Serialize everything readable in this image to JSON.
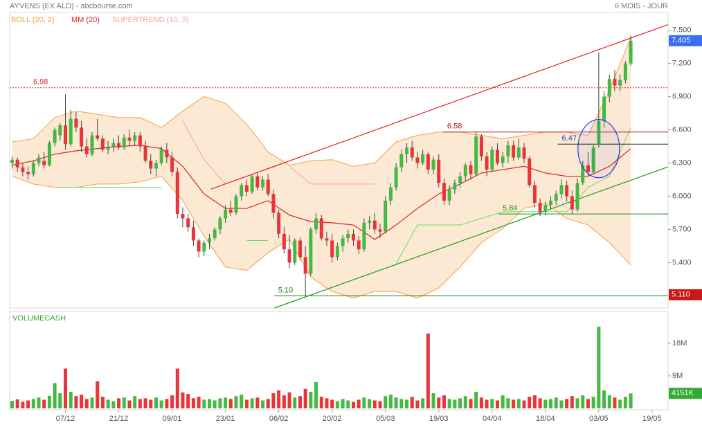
{
  "chart_data": {
    "type": "candlestick",
    "title": "AYVENS (EX ALD) - abcbourse.com",
    "period": "6 MOIS - JOUR",
    "xlim": [
      -0.45,
      123
    ],
    "ylim": [
      4.99,
      7.66
    ],
    "yticks": [
      {
        "value": 7.5,
        "label": "7.500"
      },
      {
        "value": 7.2,
        "label": "7.200"
      },
      {
        "value": 6.9,
        "label": "6.900"
      },
      {
        "value": 6.6,
        "label": "6.600"
      },
      {
        "value": 6.3,
        "label": "6.300"
      },
      {
        "value": 6.0,
        "label": "6.000"
      },
      {
        "value": 5.7,
        "label": "5.700"
      },
      {
        "value": 5.4,
        "label": "5.400"
      }
    ],
    "xticks": [
      {
        "value": 10,
        "label": "07/12"
      },
      {
        "value": 20,
        "label": "21/12"
      },
      {
        "value": 30,
        "label": "09/01"
      },
      {
        "value": 40,
        "label": "23/01"
      },
      {
        "value": 50,
        "label": "06/02"
      },
      {
        "value": 60,
        "label": "20/02"
      },
      {
        "value": 70,
        "label": "05/03"
      },
      {
        "value": 80,
        "label": "19/03"
      },
      {
        "value": 90,
        "label": "04/04"
      },
      {
        "value": 100,
        "label": "18/04"
      },
      {
        "value": 110,
        "label": "03/05"
      },
      {
        "value": 120,
        "label": "19/05"
      }
    ],
    "up_color": "#44b944",
    "down_color": "#e8353a",
    "ohlc": [
      [
        6.3,
        6.36,
        6.25,
        6.33
      ],
      [
        6.33,
        6.35,
        6.22,
        6.26
      ],
      [
        6.26,
        6.3,
        6.18,
        6.22
      ],
      [
        6.22,
        6.27,
        6.15,
        6.2
      ],
      [
        6.2,
        6.32,
        6.18,
        6.3
      ],
      [
        6.3,
        6.38,
        6.27,
        6.35
      ],
      [
        6.32,
        6.4,
        6.25,
        6.28
      ],
      [
        6.28,
        6.5,
        6.27,
        6.48
      ],
      [
        6.48,
        6.62,
        6.45,
        6.6
      ],
      [
        6.55,
        6.66,
        6.5,
        6.64
      ],
      [
        6.64,
        6.92,
        6.42,
        6.47
      ],
      [
        6.47,
        6.78,
        6.45,
        6.7
      ],
      [
        6.7,
        6.76,
        6.58,
        6.62
      ],
      [
        6.62,
        6.68,
        6.4,
        6.45
      ],
      [
        6.45,
        6.52,
        6.35,
        6.38
      ],
      [
        6.38,
        6.58,
        6.36,
        6.55
      ],
      [
        6.55,
        6.7,
        6.5,
        6.52
      ],
      [
        6.52,
        6.55,
        6.4,
        6.42
      ],
      [
        6.42,
        6.5,
        6.38,
        6.45
      ],
      [
        6.45,
        6.52,
        6.4,
        6.48
      ],
      [
        6.48,
        6.55,
        6.42,
        6.44
      ],
      [
        6.44,
        6.56,
        6.42,
        6.53
      ],
      [
        6.53,
        6.6,
        6.45,
        6.5
      ],
      [
        6.5,
        6.58,
        6.46,
        6.55
      ],
      [
        6.55,
        6.58,
        6.4,
        6.45
      ],
      [
        6.45,
        6.5,
        6.3,
        6.32
      ],
      [
        6.32,
        6.38,
        6.2,
        6.25
      ],
      [
        6.25,
        6.33,
        6.18,
        6.3
      ],
      [
        6.3,
        6.45,
        6.28,
        6.42
      ],
      [
        6.42,
        6.48,
        6.3,
        6.35
      ],
      [
        6.35,
        6.4,
        6.18,
        6.22
      ],
      [
        6.22,
        6.26,
        5.8,
        5.84
      ],
      [
        5.84,
        5.9,
        5.72,
        5.8
      ],
      [
        5.8,
        5.84,
        5.68,
        5.72
      ],
      [
        5.72,
        5.78,
        5.55,
        5.6
      ],
      [
        5.6,
        5.62,
        5.45,
        5.5
      ],
      [
        5.5,
        5.6,
        5.46,
        5.58
      ],
      [
        5.58,
        5.66,
        5.52,
        5.62
      ],
      [
        5.62,
        5.72,
        5.6,
        5.7
      ],
      [
        5.7,
        5.82,
        5.66,
        5.8
      ],
      [
        5.8,
        5.92,
        5.76,
        5.88
      ],
      [
        5.88,
        5.96,
        5.82,
        5.85
      ],
      [
        5.85,
        6.02,
        5.83,
        6.0
      ],
      [
        6.0,
        6.12,
        5.96,
        6.1
      ],
      [
        6.1,
        6.15,
        6.0,
        6.04
      ],
      [
        6.04,
        6.2,
        6.02,
        6.18
      ],
      [
        6.18,
        6.22,
        6.05,
        6.08
      ],
      [
        6.08,
        6.18,
        6.05,
        6.15
      ],
      [
        6.15,
        6.2,
        6.0,
        6.02
      ],
      [
        6.02,
        6.06,
        5.8,
        5.85
      ],
      [
        5.85,
        5.88,
        5.62,
        5.66
      ],
      [
        5.66,
        5.72,
        5.48,
        5.52
      ],
      [
        5.52,
        5.65,
        5.35,
        5.4
      ],
      [
        5.4,
        5.62,
        5.38,
        5.6
      ],
      [
        5.6,
        5.63,
        5.42,
        5.45
      ],
      [
        5.45,
        5.55,
        5.1,
        5.3
      ],
      [
        5.3,
        5.72,
        5.28,
        5.7
      ],
      [
        5.7,
        5.85,
        5.66,
        5.8
      ],
      [
        5.8,
        5.83,
        5.6,
        5.62
      ],
      [
        5.62,
        5.68,
        5.55,
        5.6
      ],
      [
        5.6,
        5.66,
        5.4,
        5.45
      ],
      [
        5.45,
        5.58,
        5.42,
        5.55
      ],
      [
        5.55,
        5.65,
        5.5,
        5.62
      ],
      [
        5.62,
        5.7,
        5.58,
        5.66
      ],
      [
        5.66,
        5.7,
        5.55,
        5.6
      ],
      [
        5.6,
        5.64,
        5.48,
        5.52
      ],
      [
        5.52,
        5.8,
        5.5,
        5.76
      ],
      [
        5.76,
        5.82,
        5.7,
        5.78
      ],
      [
        5.78,
        5.85,
        5.66,
        5.7
      ],
      [
        5.7,
        5.75,
        5.62,
        5.68
      ],
      [
        5.68,
        6.0,
        5.66,
        5.96
      ],
      [
        5.96,
        6.12,
        5.92,
        6.08
      ],
      [
        6.08,
        6.3,
        6.05,
        6.26
      ],
      [
        6.26,
        6.42,
        6.22,
        6.38
      ],
      [
        6.38,
        6.48,
        6.3,
        6.44
      ],
      [
        6.44,
        6.5,
        6.32,
        6.35
      ],
      [
        6.35,
        6.4,
        6.25,
        6.3
      ],
      [
        6.3,
        6.42,
        6.28,
        6.38
      ],
      [
        6.38,
        6.4,
        6.2,
        6.24
      ],
      [
        6.24,
        6.36,
        6.2,
        6.33
      ],
      [
        6.33,
        6.38,
        6.08,
        6.12
      ],
      [
        6.12,
        6.16,
        5.92,
        5.96
      ],
      [
        5.96,
        6.1,
        5.92,
        6.06
      ],
      [
        6.06,
        6.15,
        6.02,
        6.12
      ],
      [
        6.12,
        6.22,
        6.08,
        6.18
      ],
      [
        6.18,
        6.3,
        6.14,
        6.28
      ],
      [
        6.28,
        6.32,
        6.15,
        6.2
      ],
      [
        6.2,
        6.58,
        6.18,
        6.54
      ],
      [
        6.54,
        6.56,
        6.32,
        6.36
      ],
      [
        6.36,
        6.4,
        6.18,
        6.24
      ],
      [
        6.24,
        6.45,
        6.22,
        6.42
      ],
      [
        6.42,
        6.48,
        6.28,
        6.3
      ],
      [
        6.3,
        6.4,
        6.26,
        6.36
      ],
      [
        6.36,
        6.5,
        6.3,
        6.46
      ],
      [
        6.46,
        6.5,
        6.32,
        6.35
      ],
      [
        6.35,
        6.52,
        6.33,
        6.44
      ],
      [
        6.44,
        6.48,
        6.3,
        6.34
      ],
      [
        6.34,
        6.36,
        6.08,
        6.1
      ],
      [
        6.1,
        6.14,
        5.9,
        5.94
      ],
      [
        5.94,
        5.98,
        5.82,
        5.86
      ],
      [
        5.86,
        5.95,
        5.83,
        5.92
      ],
      [
        5.92,
        6.0,
        5.88,
        5.96
      ],
      [
        5.96,
        6.05,
        5.92,
        6.02
      ],
      [
        6.02,
        6.15,
        5.98,
        6.1
      ],
      [
        6.1,
        6.14,
        5.95,
        6.0
      ],
      [
        6.0,
        6.05,
        5.84,
        5.88
      ],
      [
        5.88,
        6.16,
        5.86,
        6.12
      ],
      [
        6.12,
        6.32,
        6.1,
        6.28
      ],
      [
        6.28,
        6.4,
        6.18,
        6.22
      ],
      [
        6.22,
        6.46,
        6.2,
        6.44
      ],
      [
        6.46,
        7.3,
        6.44,
        6.68
      ],
      [
        6.68,
        6.95,
        6.62,
        6.9
      ],
      [
        6.9,
        7.1,
        6.85,
        7.06
      ],
      [
        7.06,
        7.14,
        6.95,
        7.0
      ],
      [
        7.0,
        7.1,
        6.95,
        7.05
      ],
      [
        7.05,
        7.22,
        7.02,
        7.2
      ],
      [
        7.2,
        7.45,
        7.18,
        7.405
      ]
    ],
    "boll": {
      "name": "BOLL (20, 2)",
      "color": "#f0a040",
      "fill": "#fbe3c8",
      "x": [
        0,
        4,
        8,
        12,
        16,
        20,
        24,
        28,
        32,
        36,
        40,
        44,
        48,
        52,
        56,
        60,
        64,
        68,
        72,
        76,
        80,
        84,
        88,
        92,
        96,
        100,
        104,
        108,
        112,
        116
      ],
      "upper": [
        6.49,
        6.52,
        6.71,
        6.77,
        6.74,
        6.71,
        6.71,
        6.62,
        6.77,
        6.9,
        6.84,
        6.65,
        6.4,
        6.28,
        6.32,
        6.33,
        6.27,
        6.3,
        6.49,
        6.55,
        6.58,
        6.58,
        6.55,
        6.52,
        6.55,
        6.58,
        6.58,
        6.55,
        6.96,
        7.43
      ],
      "lower": [
        6.18,
        6.11,
        6.08,
        6.08,
        6.11,
        6.11,
        6.13,
        6.18,
        5.96,
        5.64,
        5.36,
        5.33,
        5.49,
        5.61,
        5.27,
        5.14,
        5.08,
        5.14,
        5.14,
        5.08,
        5.17,
        5.36,
        5.58,
        5.71,
        5.89,
        5.93,
        5.8,
        5.74,
        5.58,
        5.38
      ]
    },
    "mm": {
      "name": "MM (20)",
      "color": "#e02020",
      "x": [
        0,
        4,
        8,
        12,
        16,
        20,
        24,
        28,
        32,
        36,
        40,
        44,
        48,
        52,
        56,
        60,
        64,
        68,
        72,
        76,
        80,
        84,
        88,
        92,
        96,
        100,
        104,
        108,
        112,
        116
      ],
      "values": [
        6.28,
        6.32,
        6.38,
        6.41,
        6.43,
        6.45,
        6.46,
        6.43,
        6.27,
        6.02,
        5.89,
        5.89,
        5.96,
        5.83,
        5.77,
        5.76,
        5.74,
        5.61,
        5.74,
        5.89,
        6.02,
        6.11,
        6.21,
        6.24,
        6.27,
        6.21,
        6.18,
        6.18,
        6.27,
        6.43
      ]
    },
    "supertrend": {
      "name": "SUPERTREND (10, 3)",
      "color": "#f4a0a0",
      "bull_color": "#66dd66",
      "x": [
        0,
        4,
        8,
        12,
        16,
        20,
        24,
        28,
        32,
        36,
        40,
        44,
        48,
        52,
        56,
        60,
        64,
        68,
        72,
        76,
        80,
        84,
        88,
        92,
        96,
        100,
        104,
        108,
        112,
        116
      ],
      "bear": [
        null,
        null,
        null,
        null,
        null,
        null,
        null,
        null,
        6.68,
        6.33,
        6.11,
        null,
        null,
        6.27,
        6.11,
        6.11,
        6.11,
        6.11,
        null,
        null,
        null,
        null,
        null,
        null,
        null,
        null,
        null,
        null,
        null,
        null
      ],
      "bull": [
        null,
        null,
        6.08,
        6.08,
        6.08,
        6.08,
        6.08,
        6.08,
        null,
        null,
        null,
        5.6,
        5.6,
        null,
        null,
        null,
        null,
        null,
        5.39,
        5.74,
        5.74,
        5.74,
        5.8,
        5.86,
        5.86,
        5.86,
        5.86,
        6.08,
        6.18,
        6.62
      ]
    },
    "hlines": [
      {
        "value": 6.98,
        "label": "6.98",
        "x_start": -0.45,
        "color": "#d03030",
        "dashed": true
      },
      {
        "value": 6.58,
        "label": "6.58",
        "x_start": 80.8,
        "color": "#b01818",
        "dashed": false
      },
      {
        "value": 6.47,
        "label": "6.47",
        "x_start": 102.3,
        "color": "#222222",
        "label_color": "#2a3bd8",
        "dashed": false
      },
      {
        "value": 5.84,
        "label": "5.84",
        "x_start": 91.2,
        "color": "#1a8a1a",
        "dashed": false
      },
      {
        "value": 5.1,
        "label": "5.10",
        "x_start": 49.1,
        "color": "#1a7a1a",
        "dashed": false
      }
    ],
    "trendlines": [
      {
        "x1": 37.3,
        "y1": 6.064,
        "x2": 123,
        "y2": 7.55,
        "color": "#e02020"
      },
      {
        "x1": 49.2,
        "y1": 4.99,
        "x2": 123,
        "y2": 6.265,
        "color": "#1a9a1a"
      }
    ],
    "ellipse": {
      "cx": 110,
      "cy": 6.43,
      "rx": 3.9,
      "ry": 0.263,
      "color": "#2a3bd8"
    },
    "last_price": {
      "value": 7.405,
      "label": "7.405",
      "color": "#3a6ef0"
    },
    "level_box": {
      "value": 5.11,
      "label": "5.110",
      "color": "#c81818"
    },
    "volume": {
      "name": "VOLUMECASH",
      "color": "#33aa33",
      "ylim": [
        0,
        26.8
      ],
      "yticks": [
        {
          "value": 18,
          "label": "18M"
        },
        {
          "value": 9,
          "label": "9M"
        }
      ],
      "values": [
        2.1,
        2.5,
        1.8,
        2.2,
        2.6,
        3.0,
        2.4,
        3.5,
        7.0,
        4.2,
        11.0,
        4.6,
        3.4,
        3.8,
        2.6,
        3.0,
        7.5,
        3.2,
        2.4,
        2.0,
        2.8,
        3.0,
        2.2,
        3.4,
        2.6,
        2.8,
        2.4,
        3.0,
        2.2,
        2.6,
        3.6,
        11.0,
        4.4,
        4.0,
        2.8,
        3.2,
        2.4,
        2.6,
        2.2,
        2.8,
        3.0,
        2.6,
        3.4,
        3.8,
        2.4,
        2.8,
        3.0,
        2.2,
        2.6,
        4.2,
        5.0,
        3.6,
        4.4,
        3.0,
        3.4,
        5.4,
        4.6,
        7.3,
        3.2,
        2.8,
        2.4,
        2.0,
        2.6,
        2.2,
        1.8,
        2.4,
        3.0,
        2.6,
        2.2,
        2.0,
        3.4,
        3.8,
        3.0,
        2.6,
        2.4,
        3.2,
        2.2,
        2.8,
        20.7,
        4.2,
        3.0,
        3.6,
        2.6,
        2.4,
        2.8,
        3.4,
        2.6,
        4.6,
        3.0,
        2.4,
        2.6,
        2.2,
        3.6,
        2.8,
        2.4,
        2.6,
        2.2,
        3.2,
        3.6,
        2.8,
        2.4,
        2.6,
        3.0,
        2.2,
        2.6,
        3.4,
        2.8,
        3.6,
        2.6,
        3.2,
        22.6,
        5.0,
        3.6,
        3.0,
        2.4,
        3.2,
        4.151
      ],
      "last": {
        "value": 4.151,
        "label": "4151K"
      }
    }
  }
}
